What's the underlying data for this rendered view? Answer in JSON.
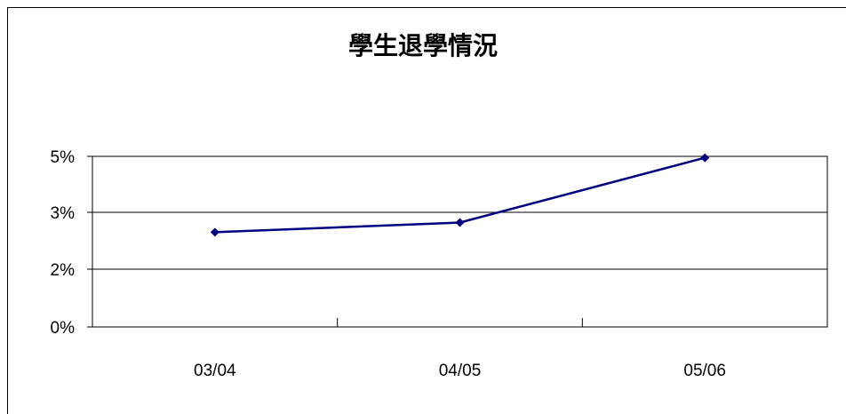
{
  "chart_data": {
    "type": "line",
    "title": "學生退學情況",
    "categories": [
      "03/04",
      "04/05",
      "05/06"
    ],
    "series": [
      {
        "values": [
          2.65,
          2.82,
          4.95
        ],
        "color": "#000080"
      }
    ],
    "ylim": [
      0,
      5
    ],
    "y_ticks": [
      {
        "value": 0,
        "label": "0%"
      },
      {
        "value": 2,
        "label": "2%"
      },
      {
        "value": 3,
        "label": "3%"
      },
      {
        "value": 5,
        "label": "5%"
      }
    ],
    "xlabel": "",
    "ylabel": "",
    "grid": true,
    "legend": "none"
  }
}
